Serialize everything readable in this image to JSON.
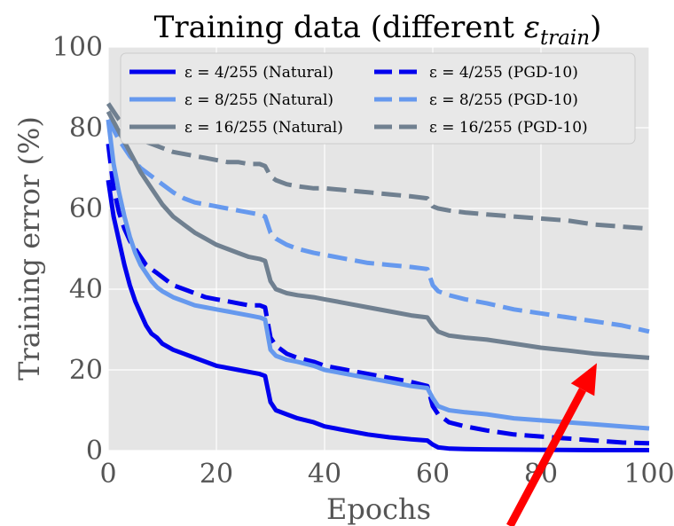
{
  "chart_data": {
    "type": "line",
    "title": "Training data (different ε_train)",
    "xlabel": "Epochs",
    "ylabel": "Training error (%)",
    "xlim": [
      0,
      100
    ],
    "ylim": [
      0,
      100
    ],
    "x_ticks": [
      "0",
      "20",
      "40",
      "60",
      "80",
      "100"
    ],
    "y_ticks": [
      "0",
      "20",
      "40",
      "60",
      "80",
      "100"
    ],
    "grid": true,
    "legend_position": "top",
    "legend_columns": 2,
    "background": "#e5e5e5",
    "series": [
      {
        "name": "ε = 4/255 (Natural)",
        "color": "#0000ee",
        "style": "solid",
        "points": [
          [
            0,
            67
          ],
          [
            1,
            58
          ],
          [
            2,
            52
          ],
          [
            3,
            46
          ],
          [
            4,
            41
          ],
          [
            5,
            37
          ],
          [
            6,
            34
          ],
          [
            7,
            31
          ],
          [
            8,
            29
          ],
          [
            9,
            28
          ],
          [
            10,
            26.5
          ],
          [
            12,
            25
          ],
          [
            14,
            24
          ],
          [
            16,
            23
          ],
          [
            18,
            22
          ],
          [
            20,
            21
          ],
          [
            22,
            20.5
          ],
          [
            24,
            20
          ],
          [
            26,
            19.5
          ],
          [
            28,
            19
          ],
          [
            29,
            18.5
          ],
          [
            30,
            12
          ],
          [
            31,
            10
          ],
          [
            33,
            9
          ],
          [
            35,
            8
          ],
          [
            38,
            7
          ],
          [
            40,
            6
          ],
          [
            44,
            5
          ],
          [
            48,
            4
          ],
          [
            52,
            3.3
          ],
          [
            56,
            2.8
          ],
          [
            59,
            2.5
          ],
          [
            60,
            1.5
          ],
          [
            61,
            0.8
          ],
          [
            63,
            0.5
          ],
          [
            66,
            0.4
          ],
          [
            70,
            0.3
          ],
          [
            80,
            0.2
          ],
          [
            90,
            0.1
          ],
          [
            100,
            0.1
          ]
        ]
      },
      {
        "name": "ε = 8/255 (Natural)",
        "color": "#6699ee",
        "style": "solid",
        "points": [
          [
            0,
            82
          ],
          [
            1,
            71
          ],
          [
            2,
            64
          ],
          [
            3,
            58
          ],
          [
            4,
            53
          ],
          [
            5,
            49
          ],
          [
            6,
            46
          ],
          [
            7,
            44
          ],
          [
            8,
            42
          ],
          [
            9,
            40.5
          ],
          [
            10,
            39.5
          ],
          [
            12,
            38
          ],
          [
            14,
            37
          ],
          [
            16,
            36
          ],
          [
            18,
            35.5
          ],
          [
            20,
            35
          ],
          [
            22,
            34.5
          ],
          [
            24,
            34
          ],
          [
            26,
            33.5
          ],
          [
            28,
            33
          ],
          [
            29,
            32.5
          ],
          [
            30,
            25
          ],
          [
            31,
            23.5
          ],
          [
            33,
            22.5
          ],
          [
            35,
            22
          ],
          [
            38,
            21
          ],
          [
            40,
            20
          ],
          [
            44,
            19
          ],
          [
            48,
            18
          ],
          [
            52,
            17
          ],
          [
            56,
            16
          ],
          [
            59,
            15.5
          ],
          [
            60,
            13
          ],
          [
            61,
            11
          ],
          [
            63,
            10
          ],
          [
            66,
            9.5
          ],
          [
            70,
            9
          ],
          [
            75,
            8
          ],
          [
            80,
            7.5
          ],
          [
            85,
            7
          ],
          [
            90,
            6.5
          ],
          [
            95,
            6
          ],
          [
            100,
            5.5
          ]
        ]
      },
      {
        "name": "ε = 16/255 (Natural)",
        "color": "#708090",
        "style": "solid",
        "points": [
          [
            0,
            84
          ],
          [
            2,
            79
          ],
          [
            4,
            74
          ],
          [
            6,
            69
          ],
          [
            8,
            65
          ],
          [
            10,
            61
          ],
          [
            12,
            58
          ],
          [
            14,
            56
          ],
          [
            16,
            54
          ],
          [
            18,
            52.5
          ],
          [
            20,
            51
          ],
          [
            22,
            50
          ],
          [
            24,
            49
          ],
          [
            26,
            48
          ],
          [
            28,
            47.5
          ],
          [
            29,
            47
          ],
          [
            30,
            42
          ],
          [
            31,
            40
          ],
          [
            33,
            39
          ],
          [
            35,
            38.5
          ],
          [
            38,
            38
          ],
          [
            40,
            37.5
          ],
          [
            44,
            36.5
          ],
          [
            48,
            35.5
          ],
          [
            52,
            34.5
          ],
          [
            56,
            33.5
          ],
          [
            59,
            33
          ],
          [
            60,
            31
          ],
          [
            61,
            29.5
          ],
          [
            63,
            28.5
          ],
          [
            66,
            28
          ],
          [
            70,
            27.5
          ],
          [
            75,
            26.5
          ],
          [
            80,
            25.5
          ],
          [
            85,
            24.8
          ],
          [
            90,
            24
          ],
          [
            95,
            23.5
          ],
          [
            100,
            23
          ]
        ]
      },
      {
        "name": "ε = 4/255 (PGD-10)",
        "color": "#0000ee",
        "style": "dashed",
        "points": [
          [
            0,
            76
          ],
          [
            1,
            65
          ],
          [
            2,
            59
          ],
          [
            3,
            55
          ],
          [
            4,
            52
          ],
          [
            5,
            50
          ],
          [
            6,
            48
          ],
          [
            7,
            46
          ],
          [
            8,
            45
          ],
          [
            9,
            44
          ],
          [
            10,
            43
          ],
          [
            12,
            41
          ],
          [
            14,
            40
          ],
          [
            16,
            39
          ],
          [
            18,
            38
          ],
          [
            20,
            37.5
          ],
          [
            22,
            37
          ],
          [
            24,
            36.5
          ],
          [
            26,
            36
          ],
          [
            28,
            36
          ],
          [
            29,
            35.5
          ],
          [
            30,
            28
          ],
          [
            31,
            26
          ],
          [
            33,
            24
          ],
          [
            35,
            23
          ],
          [
            38,
            22
          ],
          [
            40,
            21
          ],
          [
            44,
            20
          ],
          [
            48,
            19
          ],
          [
            52,
            18
          ],
          [
            56,
            17
          ],
          [
            59,
            16
          ],
          [
            60,
            11
          ],
          [
            61,
            9
          ],
          [
            63,
            7
          ],
          [
            66,
            6
          ],
          [
            70,
            5
          ],
          [
            75,
            4
          ],
          [
            80,
            3.5
          ],
          [
            85,
            3
          ],
          [
            90,
            2.5
          ],
          [
            95,
            2
          ],
          [
            100,
            1.8
          ]
        ]
      },
      {
        "name": "ε = 8/255 (PGD-10)",
        "color": "#6699ee",
        "style": "dashed",
        "points": [
          [
            0,
            82
          ],
          [
            2,
            77
          ],
          [
            4,
            73
          ],
          [
            6,
            70
          ],
          [
            8,
            68
          ],
          [
            10,
            66
          ],
          [
            12,
            64
          ],
          [
            14,
            62.5
          ],
          [
            16,
            61.5
          ],
          [
            18,
            61
          ],
          [
            20,
            60.5
          ],
          [
            22,
            60
          ],
          [
            24,
            59.5
          ],
          [
            26,
            59
          ],
          [
            28,
            58.5
          ],
          [
            29,
            58
          ],
          [
            30,
            54
          ],
          [
            31,
            52.5
          ],
          [
            33,
            51
          ],
          [
            35,
            50
          ],
          [
            38,
            49
          ],
          [
            40,
            48.5
          ],
          [
            44,
            47.5
          ],
          [
            48,
            46.5
          ],
          [
            52,
            46
          ],
          [
            56,
            45.5
          ],
          [
            59,
            45
          ],
          [
            60,
            41
          ],
          [
            61,
            39.5
          ],
          [
            63,
            38.5
          ],
          [
            66,
            37.5
          ],
          [
            70,
            36.5
          ],
          [
            75,
            35
          ],
          [
            80,
            34
          ],
          [
            85,
            33
          ],
          [
            90,
            32
          ],
          [
            95,
            31
          ],
          [
            100,
            29.5
          ]
        ]
      },
      {
        "name": "ε = 16/255 (PGD-10)",
        "color": "#708090",
        "style": "dashed",
        "points": [
          [
            0,
            86
          ],
          [
            2,
            82
          ],
          [
            4,
            79
          ],
          [
            6,
            77
          ],
          [
            8,
            76
          ],
          [
            10,
            75
          ],
          [
            12,
            74
          ],
          [
            14,
            73.5
          ],
          [
            16,
            73
          ],
          [
            18,
            72.5
          ],
          [
            20,
            72
          ],
          [
            22,
            71.5
          ],
          [
            24,
            71.5
          ],
          [
            26,
            71
          ],
          [
            28,
            71
          ],
          [
            29,
            70.5
          ],
          [
            30,
            68
          ],
          [
            31,
            67
          ],
          [
            33,
            66
          ],
          [
            35,
            65.5
          ],
          [
            38,
            65
          ],
          [
            40,
            65
          ],
          [
            44,
            64.5
          ],
          [
            48,
            64
          ],
          [
            52,
            63.5
          ],
          [
            56,
            63
          ],
          [
            59,
            62.5
          ],
          [
            60,
            60.5
          ],
          [
            61,
            60
          ],
          [
            63,
            59.5
          ],
          [
            66,
            59
          ],
          [
            70,
            58.5
          ],
          [
            75,
            58
          ],
          [
            80,
            57.5
          ],
          [
            85,
            57
          ],
          [
            90,
            56
          ],
          [
            95,
            55.5
          ],
          [
            100,
            55
          ]
        ]
      }
    ],
    "annotation_arrow": {
      "color": "#ff0000",
      "points_to": [
        90,
        23
      ]
    }
  }
}
